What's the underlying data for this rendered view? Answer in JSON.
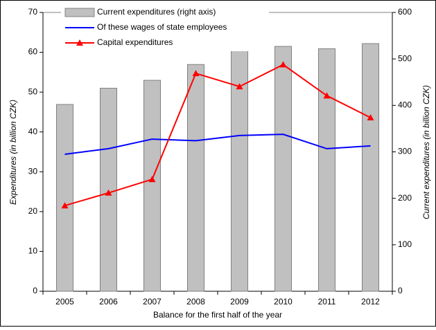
{
  "chart_data": {
    "type": "bar_line",
    "x_label": "Balance for the first half of the year",
    "y_label": "Expenditures (in billion CZK)",
    "y2_label": "Current expenditures (in billion CZK)",
    "categories": [
      "2005",
      "2006",
      "2007",
      "2008",
      "2009",
      "2010",
      "2011",
      "2012"
    ],
    "series": [
      {
        "name": "Current expenditures (right axis)",
        "type": "bar",
        "axis": "y2",
        "color": "#c0c0c0",
        "values": [
          402,
          437,
          454,
          488,
          525,
          527,
          522,
          533
        ]
      },
      {
        "name": "Of these wages of state employees",
        "type": "line",
        "axis": "y",
        "color": "#0000ff",
        "values": [
          34.4,
          35.8,
          38.2,
          37.8,
          39.1,
          39.4,
          35.8,
          36.5
        ]
      },
      {
        "name": "Capital expenditures",
        "type": "line",
        "axis": "y",
        "color": "#ff0000",
        "marker": "triangle",
        "values": [
          21.5,
          24.7,
          28.1,
          54.7,
          51.4,
          56.9,
          49.1,
          43.6
        ]
      }
    ],
    "ylim": [
      0,
      70
    ],
    "yticks": [
      0,
      10,
      20,
      30,
      40,
      50,
      60,
      70
    ],
    "y2lim": [
      0,
      600
    ],
    "y2ticks": [
      0,
      100,
      200,
      300,
      400,
      500,
      600
    ],
    "legend": "top",
    "grid": false
  }
}
